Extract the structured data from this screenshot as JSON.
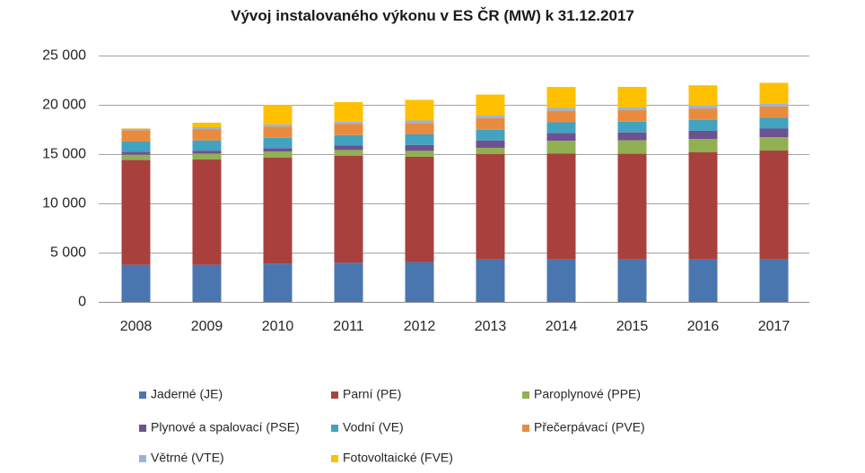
{
  "chart_data": {
    "type": "bar",
    "stacked": true,
    "title": "Vývoj instalovaného výkonu v ES ČR (MW) k 31.12.2017",
    "xlabel": "",
    "ylabel": "",
    "categories": [
      "2008",
      "2009",
      "2010",
      "2011",
      "2012",
      "2013",
      "2014",
      "2015",
      "2016",
      "2017"
    ],
    "ylim": [
      0,
      25000
    ],
    "yticks": [
      0,
      5000,
      10000,
      15000,
      20000,
      25000
    ],
    "ytick_labels": [
      "0",
      "5 000",
      "10 000",
      "15 000",
      "20 000",
      "25 000"
    ],
    "grid": true,
    "legend_position": "bottom",
    "series": [
      {
        "name": "Jaderné (JE)",
        "color": "#4a76b0",
        "values": [
          3760,
          3760,
          3900,
          3970,
          4040,
          4290,
          4290,
          4290,
          4290,
          4290
        ]
      },
      {
        "name": "Parní (PE)",
        "color": "#a8413e",
        "values": [
          10640,
          10690,
          10740,
          10850,
          10690,
          10710,
          10760,
          10750,
          10890,
          11070
        ]
      },
      {
        "name": "Paroplynové (PPE)",
        "color": "#90b052",
        "values": [
          540,
          600,
          620,
          600,
          600,
          640,
          1300,
          1360,
          1360,
          1360
        ]
      },
      {
        "name": "Plynové a spalovací (PSE)",
        "color": "#6e5190",
        "values": [
          300,
          300,
          340,
          450,
          600,
          750,
          800,
          800,
          830,
          870
        ]
      },
      {
        "name": "Vodní (VE)",
        "color": "#42a3c0",
        "values": [
          1030,
          1040,
          1050,
          1060,
          1070,
          1080,
          1080,
          1090,
          1090,
          1090
        ]
      },
      {
        "name": "Přečerpávací (PVE)",
        "color": "#e98b3f",
        "values": [
          1150,
          1150,
          1150,
          1150,
          1150,
          1170,
          1170,
          1170,
          1170,
          1170
        ]
      },
      {
        "name": "Větrné (VTE)",
        "color": "#98b4dc",
        "values": [
          150,
          190,
          220,
          220,
          260,
          270,
          280,
          280,
          280,
          310
        ]
      },
      {
        "name": "Fotovoltaické (FVE)",
        "color": "#ffc000",
        "values": [
          40,
          460,
          1960,
          1970,
          2090,
          2130,
          2130,
          2080,
          2070,
          2070
        ]
      }
    ]
  }
}
